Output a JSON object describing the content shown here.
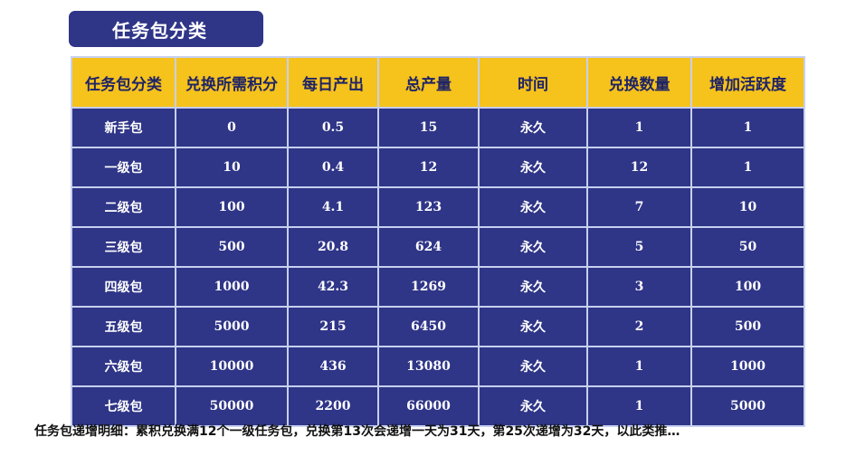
{
  "title": "任务包分类",
  "columns": [
    "任务包分类",
    "兑换所需积分",
    "每日产出",
    "总产量",
    "时间",
    "兑换数量",
    "增加活跃度"
  ],
  "rows": [
    [
      "新手包",
      "0",
      "0.5",
      "15",
      "永久",
      "1",
      "1"
    ],
    [
      "一级包",
      "10",
      "0.4",
      "12",
      "永久",
      "12",
      "1"
    ],
    [
      "二级包",
      "100",
      "4.1",
      "123",
      "永久",
      "7",
      "10"
    ],
    [
      "三级包",
      "500",
      "20.8",
      "624",
      "永久",
      "5",
      "50"
    ],
    [
      "四级包",
      "1000",
      "42.3",
      "1269",
      "永久",
      "3",
      "100"
    ],
    [
      "五级包",
      "5000",
      "215",
      "6450",
      "永久",
      "2",
      "500"
    ],
    [
      "六级包",
      "10000",
      "436",
      "13080",
      "永久",
      "1",
      "1000"
    ],
    [
      "七级包",
      "50000",
      "2200",
      "66000",
      "永久",
      "1",
      "5000"
    ]
  ],
  "footnote": "任务包递增明细：累积兑换满12个一级任务包，兑换第13次会递增一天为31天，第25次递增为32天，以此类推…",
  "colors": {
    "header_bg": "#f6c21c",
    "cell_bg": "#2f3587",
    "title_bg": "#2f3587",
    "border": "#c7d0f0"
  }
}
